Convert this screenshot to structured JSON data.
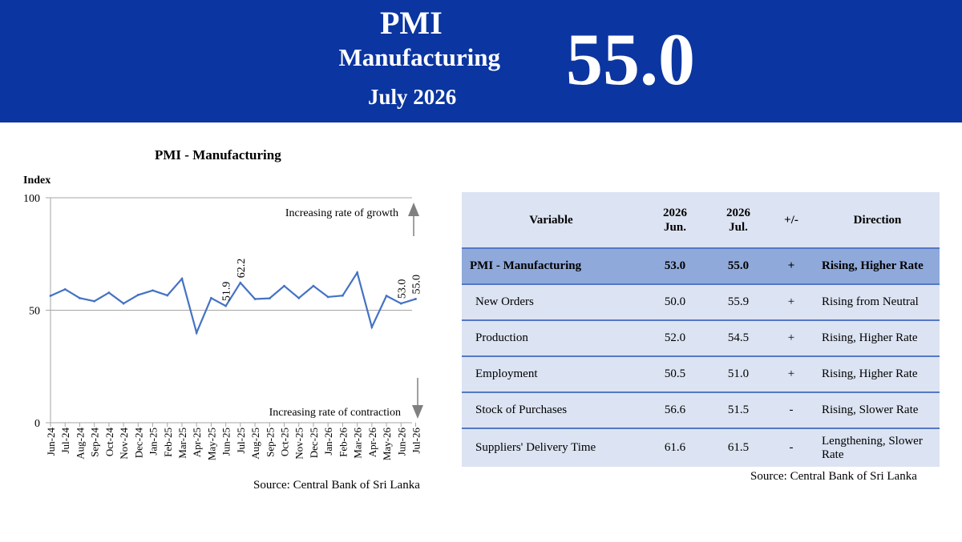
{
  "header": {
    "title": "PMI",
    "subtitle": "Manufacturing",
    "date": "July 2026",
    "headline_value": "55.0"
  },
  "chart_data": {
    "type": "line",
    "title": "PMI - Manufacturing",
    "ylabel": "Index",
    "ylim": [
      0,
      100
    ],
    "yticks": [
      0,
      50,
      100
    ],
    "grid": "horizontal line at 50",
    "categories": [
      "Jun-24",
      "Jul-24",
      "Aug-24",
      "Sep-24",
      "Oct-24",
      "Nov-24",
      "Dec-24",
      "Jan-25",
      "Feb-25",
      "Mar-25",
      "Apr-25",
      "May-25",
      "Jun-25",
      "Jul-25",
      "Aug-25",
      "Sep-25",
      "Oct-25",
      "Nov-25",
      "Dec-25",
      "Jan-26",
      "Feb-26",
      "Mar-26",
      "Apr-26",
      "May-26",
      "Jun-26",
      "Jul-26"
    ],
    "series": [
      {
        "values": [
          56.4,
          59.3,
          55.4,
          54.0,
          57.8,
          53.0,
          56.8,
          58.8,
          56.6,
          64.0,
          40.0,
          55.4,
          51.9,
          62.2,
          55.0,
          55.3,
          60.8,
          55.4,
          60.8,
          55.9,
          56.5,
          66.7,
          42.5,
          56.4,
          53.0,
          55.0
        ],
        "color": "#4472c4"
      }
    ],
    "data_labels": [
      {
        "category": "Jun-25",
        "text": "51.9"
      },
      {
        "category": "Jul-25",
        "text": "62.2"
      },
      {
        "category": "Jun-26",
        "text": "53.0"
      },
      {
        "category": "Jul-26",
        "text": "55.0"
      }
    ],
    "annotations": {
      "growth": "Increasing rate of growth",
      "contraction": "Increasing rate of contraction"
    },
    "source": "Source: Central Bank of Sri Lanka"
  },
  "table": {
    "headers": {
      "variable": "Variable",
      "jun_year": "2026",
      "jun_month": "Jun.",
      "jul_year": "2026",
      "jul_month": "Jul.",
      "change": "+/-",
      "direction": "Direction"
    },
    "rows": [
      {
        "variable": "PMI - Manufacturing",
        "jun": "53.0",
        "jul": "55.0",
        "change": "+",
        "direction": "Rising, Higher Rate"
      },
      {
        "variable": "New Orders",
        "jun": "50.0",
        "jul": "55.9",
        "change": "+",
        "direction": "Rising from Neutral"
      },
      {
        "variable": "Production",
        "jun": "52.0",
        "jul": "54.5",
        "change": "+",
        "direction": "Rising, Higher Rate"
      },
      {
        "variable": "Employment",
        "jun": "50.5",
        "jul": "51.0",
        "change": "+",
        "direction": "Rising, Higher Rate"
      },
      {
        "variable": "Stock of Purchases",
        "jun": "56.6",
        "jul": "51.5",
        "change": "-",
        "direction": "Rising, Slower Rate"
      },
      {
        "variable": "Suppliers' Delivery Time",
        "jun": "61.6",
        "jul": "61.5",
        "change": "-",
        "direction": "Lengthening, Slower Rate"
      }
    ],
    "source": "Source: Central Bank of Sri Lanka"
  },
  "colors": {
    "banner": "#0b35a0",
    "table_bg": "#dce3f2",
    "table_highlight": "#8fa9da",
    "table_border": "#5478c4",
    "line": "#4472c4"
  }
}
